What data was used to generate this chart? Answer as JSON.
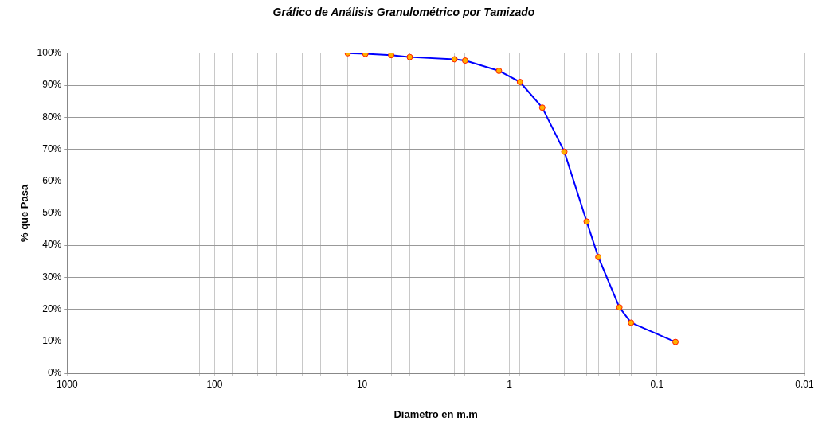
{
  "chart_data": {
    "type": "line",
    "title": "Gráfico de Análisis Granulométrico por Tamizado",
    "xlabel": "Diametro en m.m",
    "ylabel": "% que Pasa",
    "log": "x",
    "grid": true,
    "legend": false,
    "marker": "circle",
    "line_style": "solid",
    "xlim": [
      1000,
      0.01
    ],
    "xticks": [
      1000,
      100,
      10,
      1,
      0.1,
      0.01,
      {
        "value": 127,
        "label": null
      },
      {
        "value": 76.2,
        "label": null
      },
      {
        "value": 50.8,
        "label": null
      },
      {
        "value": 38.1,
        "label": null
      },
      {
        "value": 25.4,
        "label": null
      },
      {
        "value": 19.05,
        "label": null
      },
      {
        "value": 12.5,
        "label": null
      },
      {
        "value": 6.35,
        "label": null
      },
      {
        "value": 4.75,
        "label": null
      },
      {
        "value": 2.36,
        "label": null
      },
      {
        "value": 2,
        "label": null
      },
      {
        "value": 1.18,
        "label": null
      },
      {
        "value": 0.85,
        "label": null
      },
      {
        "value": 0.6,
        "label": null
      },
      {
        "value": 0.425,
        "label": null
      },
      {
        "value": 0.3,
        "label": null
      },
      {
        "value": 0.25,
        "label": null
      },
      {
        "value": 0.18,
        "label": null
      },
      {
        "value": 0.15,
        "label": null
      },
      {
        "value": 0.075,
        "label": null
      }
    ],
    "ylim": [
      0,
      100
    ],
    "yticks": [
      {
        "value": 0,
        "label": "0%"
      },
      {
        "value": 10,
        "label": "10%"
      },
      {
        "value": 20,
        "label": "20%"
      },
      {
        "value": 30,
        "label": "30%"
      },
      {
        "value": 40,
        "label": "40%"
      },
      {
        "value": 50,
        "label": "50%"
      },
      {
        "value": 60,
        "label": "60%"
      },
      {
        "value": 70,
        "label": "70%"
      },
      {
        "value": 80,
        "label": "80%"
      },
      {
        "value": 90,
        "label": "90%"
      },
      {
        "value": 100,
        "label": "100%"
      }
    ],
    "x": [
      12.5,
      9.5,
      6.35,
      4.75,
      2.36,
      2,
      1.18,
      0.85,
      0.6,
      0.425,
      0.3,
      0.25,
      0.18,
      0.15,
      0.075
    ],
    "series": [
      {
        "color": "#0000ff",
        "values": [
          100,
          99.8,
          99.4,
          98.8,
          98.1,
          97.7,
          94.5,
          91,
          83,
          69.2,
          47.4,
          36.3,
          20.6,
          15.8,
          9.8
        ]
      }
    ]
  }
}
